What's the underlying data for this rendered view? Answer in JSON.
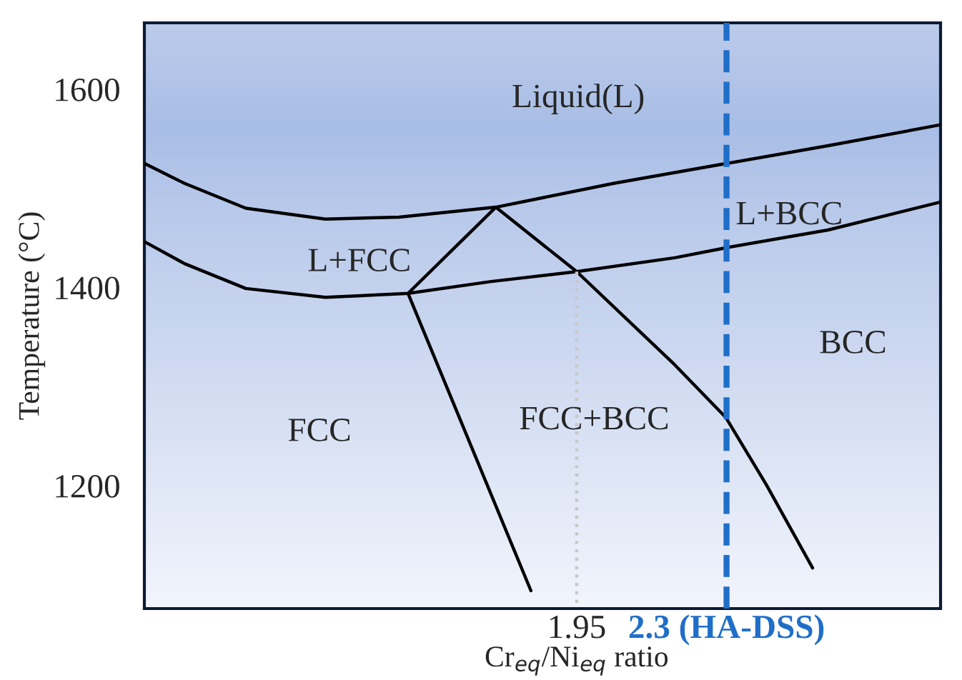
{
  "chart_data": {
    "type": "line",
    "xlabel": "Cr$_{eq}$/Ni$_{eq}$ ratio",
    "ylabel": "Temperature (°C)",
    "xlim": [
      0.94,
      2.8
    ],
    "ylim": [
      1076,
      1667
    ],
    "xticks": [
      1.95,
      {
        "value": 2.3,
        "label": "2.3 (HA-DSS)"
      }
    ],
    "yticks": [
      1200,
      1400,
      1600
    ],
    "grid": false,
    "legend": false,
    "marker": "none",
    "line_style": "solid",
    "series": [
      {
        "color": "#000000",
        "x": [
          0.941,
          1.034,
          1.177,
          1.363,
          1.535,
          1.761,
          2.036,
          2.298,
          2.537,
          2.798
        ],
        "values": [
          1525,
          1505,
          1480,
          1469,
          1471,
          1481,
          1505,
          1525,
          1543,
          1564
        ]
      },
      {
        "color": "#000000",
        "x": [
          0.941,
          1.034,
          1.177,
          1.363,
          1.556,
          1.75,
          1.95,
          2.179,
          2.298,
          2.537,
          2.798
        ],
        "values": [
          1446,
          1424,
          1399,
          1390,
          1394,
          1406,
          1416,
          1430,
          1440,
          1458,
          1486
        ]
      },
      {
        "color": "#000000",
        "x": [
          1.556,
          1.761
        ],
        "values": [
          1394,
          1481
        ]
      },
      {
        "color": "#000000",
        "x": [
          1.556,
          1.843
        ],
        "values": [
          1394,
          1094
        ]
      },
      {
        "color": "#000000",
        "x": [
          1.761,
          1.95,
          2.179,
          2.298,
          2.393,
          2.501
        ],
        "values": [
          1481,
          1416,
          1322,
          1269,
          1201,
          1117
        ]
      },
      {
        "color": "#c8c8c8",
        "line_style": "dotted",
        "x": [
          1.95,
          1.95
        ],
        "values": [
          1416,
          1080
        ]
      }
    ],
    "ref_lines": [
      {
        "axis": "x",
        "value": 2.3,
        "color": "#1f6fc8",
        "line_style": "dashed"
      }
    ],
    "annotations": [
      "Liquid(L)",
      "L+FCC",
      "L+BCC",
      "BCC",
      "FCC+BCC",
      "FCC"
    ]
  }
}
